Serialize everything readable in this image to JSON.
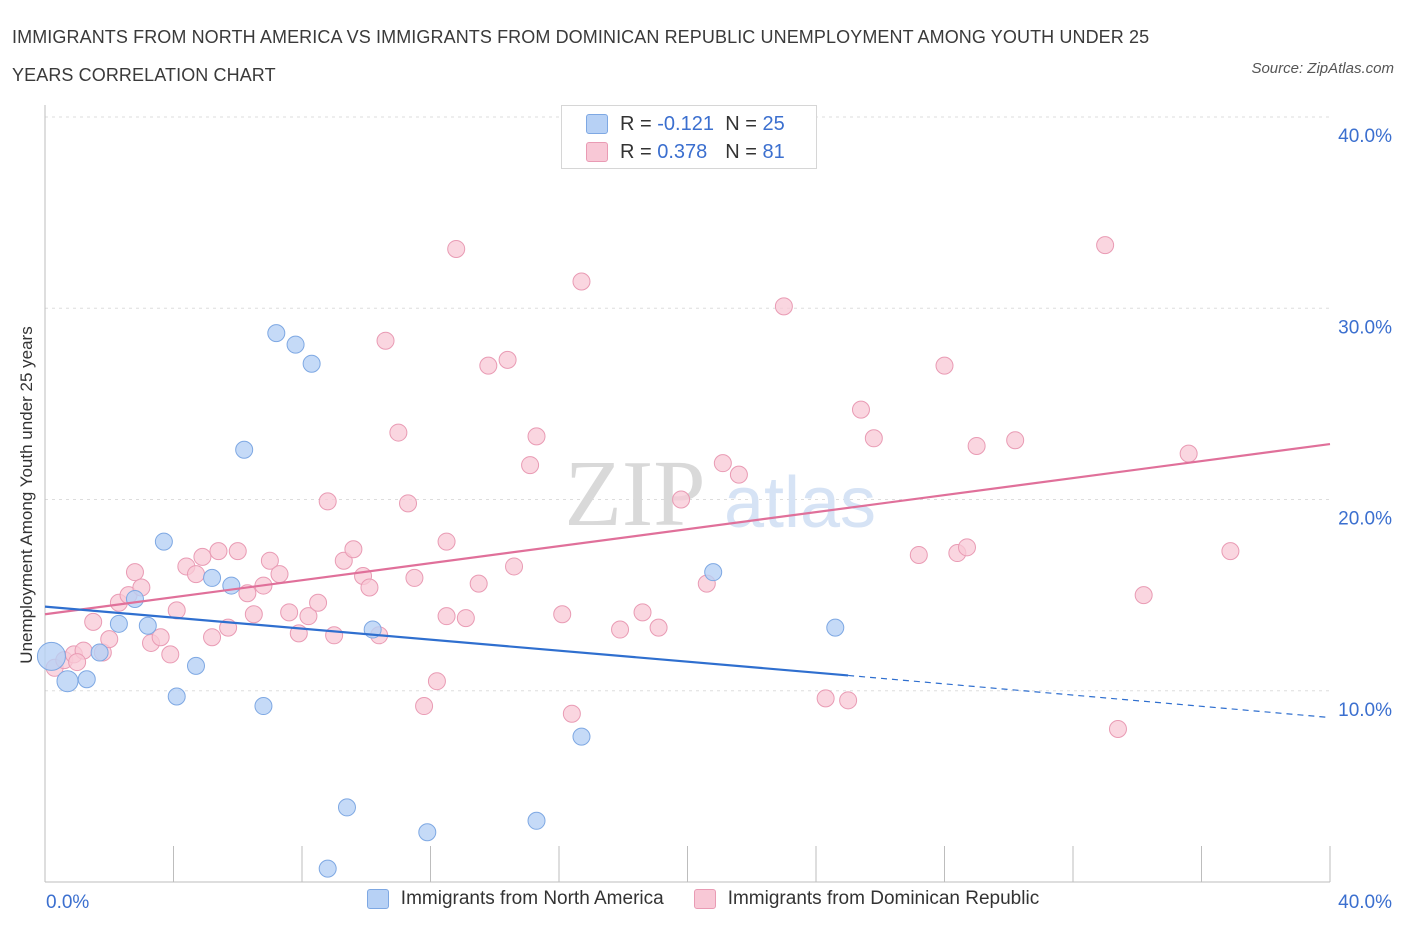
{
  "header": {
    "title": "IMMIGRANTS FROM NORTH AMERICA VS IMMIGRANTS FROM DOMINICAN REPUBLIC UNEMPLOYMENT AMONG YOUTH UNDER 25 YEARS CORRELATION CHART",
    "source": "Source: ZipAtlas.com"
  },
  "legend": {
    "r_label": "R =",
    "n_label": "N =",
    "rows": [
      {
        "r": "-0.121",
        "n": "25"
      },
      {
        "r": "0.378",
        "n": "81"
      }
    ]
  },
  "watermark": {
    "zip": "ZIP",
    "atlas": "atlas"
  },
  "colors": {
    "blue_fill": "#b7d1f5",
    "blue_stroke": "#7ea8e3",
    "blue_line": "#2f6fcf",
    "pink_fill": "#f8c8d6",
    "pink_stroke": "#e99bb4",
    "pink_line": "#e0709a",
    "axis_text": "#3b6fcf",
    "grid": "#dddddd"
  },
  "chart_data": {
    "type": "scatter",
    "title": "Immigrants from North America vs Immigrants from Dominican Republic Unemployment Among Youth under 25 years Correlation Chart",
    "xlabel": "",
    "ylabel": "Unemployment Among Youth under 25 years",
    "xlim": [
      0,
      40
    ],
    "ylim": [
      0,
      40
    ],
    "x_tick_labels": [
      "0.0%",
      "40.0%"
    ],
    "y_ticks": [
      10,
      20,
      30,
      40
    ],
    "y_tick_labels": [
      "10.0%",
      "20.0%",
      "30.0%",
      "40.0%"
    ],
    "series": [
      {
        "name": "Immigrants from North America",
        "r": -0.121,
        "n": 25,
        "trend": {
          "x0": 0,
          "y0": 14.4,
          "x1": 25,
          "y1": 10.8,
          "dash_to_x": 40,
          "dash_to_y": 8.6
        },
        "points": [
          [
            0.2,
            11.8
          ],
          [
            0.7,
            10.5
          ],
          [
            1.3,
            10.6
          ],
          [
            1.7,
            12.0
          ],
          [
            2.3,
            13.5
          ],
          [
            2.8,
            14.8
          ],
          [
            3.2,
            13.4
          ],
          [
            3.7,
            17.8
          ],
          [
            4.1,
            9.7
          ],
          [
            4.7,
            11.3
          ],
          [
            5.2,
            15.9
          ],
          [
            5.8,
            15.5
          ],
          [
            6.2,
            22.6
          ],
          [
            6.8,
            9.2
          ],
          [
            7.2,
            28.7
          ],
          [
            7.8,
            28.1
          ],
          [
            8.3,
            27.1
          ],
          [
            8.8,
            0.7
          ],
          [
            9.4,
            3.9
          ],
          [
            10.2,
            13.2
          ],
          [
            11.9,
            2.6
          ],
          [
            15.3,
            3.2
          ],
          [
            16.7,
            7.6
          ],
          [
            20.8,
            16.2
          ],
          [
            24.6,
            13.3
          ]
        ]
      },
      {
        "name": "Immigrants from Dominican Republic",
        "r": 0.378,
        "n": 81,
        "trend": {
          "x0": 0,
          "y0": 14.0,
          "x1": 40,
          "y1": 22.9
        },
        "points": [
          [
            0.3,
            11.2
          ],
          [
            0.6,
            11.6
          ],
          [
            0.9,
            11.9
          ],
          [
            1.2,
            12.1
          ],
          [
            1.5,
            13.6
          ],
          [
            1.8,
            12.0
          ],
          [
            2.0,
            12.7
          ],
          [
            2.3,
            14.6
          ],
          [
            2.6,
            15.0
          ],
          [
            2.8,
            16.2
          ],
          [
            3.0,
            15.4
          ],
          [
            3.3,
            12.5
          ],
          [
            3.6,
            12.8
          ],
          [
            3.9,
            11.9
          ],
          [
            4.1,
            14.2
          ],
          [
            4.4,
            16.5
          ],
          [
            4.7,
            16.1
          ],
          [
            4.9,
            17.0
          ],
          [
            5.2,
            12.8
          ],
          [
            5.4,
            17.3
          ],
          [
            5.7,
            13.3
          ],
          [
            6.0,
            17.3
          ],
          [
            6.3,
            15.1
          ],
          [
            6.5,
            14.0
          ],
          [
            6.8,
            15.5
          ],
          [
            7.0,
            16.8
          ],
          [
            7.3,
            16.1
          ],
          [
            7.6,
            14.1
          ],
          [
            7.9,
            13.0
          ],
          [
            8.2,
            13.9
          ],
          [
            8.5,
            14.6
          ],
          [
            8.8,
            19.9
          ],
          [
            9.0,
            12.9
          ],
          [
            9.3,
            16.8
          ],
          [
            9.6,
            17.4
          ],
          [
            9.9,
            16.0
          ],
          [
            10.1,
            15.4
          ],
          [
            10.4,
            12.9
          ],
          [
            10.6,
            28.3
          ],
          [
            11.0,
            23.5
          ],
          [
            11.3,
            19.8
          ],
          [
            11.5,
            15.9
          ],
          [
            11.8,
            9.2
          ],
          [
            12.2,
            10.5
          ],
          [
            12.5,
            13.9
          ],
          [
            12.5,
            17.8
          ],
          [
            12.8,
            33.1
          ],
          [
            13.1,
            13.8
          ],
          [
            13.5,
            15.6
          ],
          [
            13.8,
            27.0
          ],
          [
            14.4,
            27.3
          ],
          [
            14.6,
            16.5
          ],
          [
            15.1,
            21.8
          ],
          [
            15.3,
            23.3
          ],
          [
            16.1,
            14.0
          ],
          [
            16.4,
            8.8
          ],
          [
            16.7,
            31.4
          ],
          [
            17.9,
            13.2
          ],
          [
            18.6,
            14.1
          ],
          [
            19.1,
            13.3
          ],
          [
            19.8,
            20.0
          ],
          [
            20.6,
            15.6
          ],
          [
            21.1,
            21.9
          ],
          [
            21.6,
            21.3
          ],
          [
            23.0,
            30.1
          ],
          [
            24.3,
            9.6
          ],
          [
            25.0,
            9.5
          ],
          [
            25.4,
            24.7
          ],
          [
            25.8,
            23.2
          ],
          [
            27.2,
            17.1
          ],
          [
            28.0,
            27.0
          ],
          [
            28.4,
            17.2
          ],
          [
            28.7,
            17.5
          ],
          [
            29.0,
            22.8
          ],
          [
            30.2,
            23.1
          ],
          [
            33.0,
            33.3
          ],
          [
            33.4,
            8.0
          ],
          [
            34.2,
            15.0
          ],
          [
            35.6,
            22.4
          ],
          [
            36.9,
            17.3
          ],
          [
            1.0,
            11.5
          ]
        ]
      }
    ]
  },
  "bottom_legend": [
    {
      "label": "Immigrants from North America"
    },
    {
      "label": "Immigrants from Dominican Republic"
    }
  ]
}
